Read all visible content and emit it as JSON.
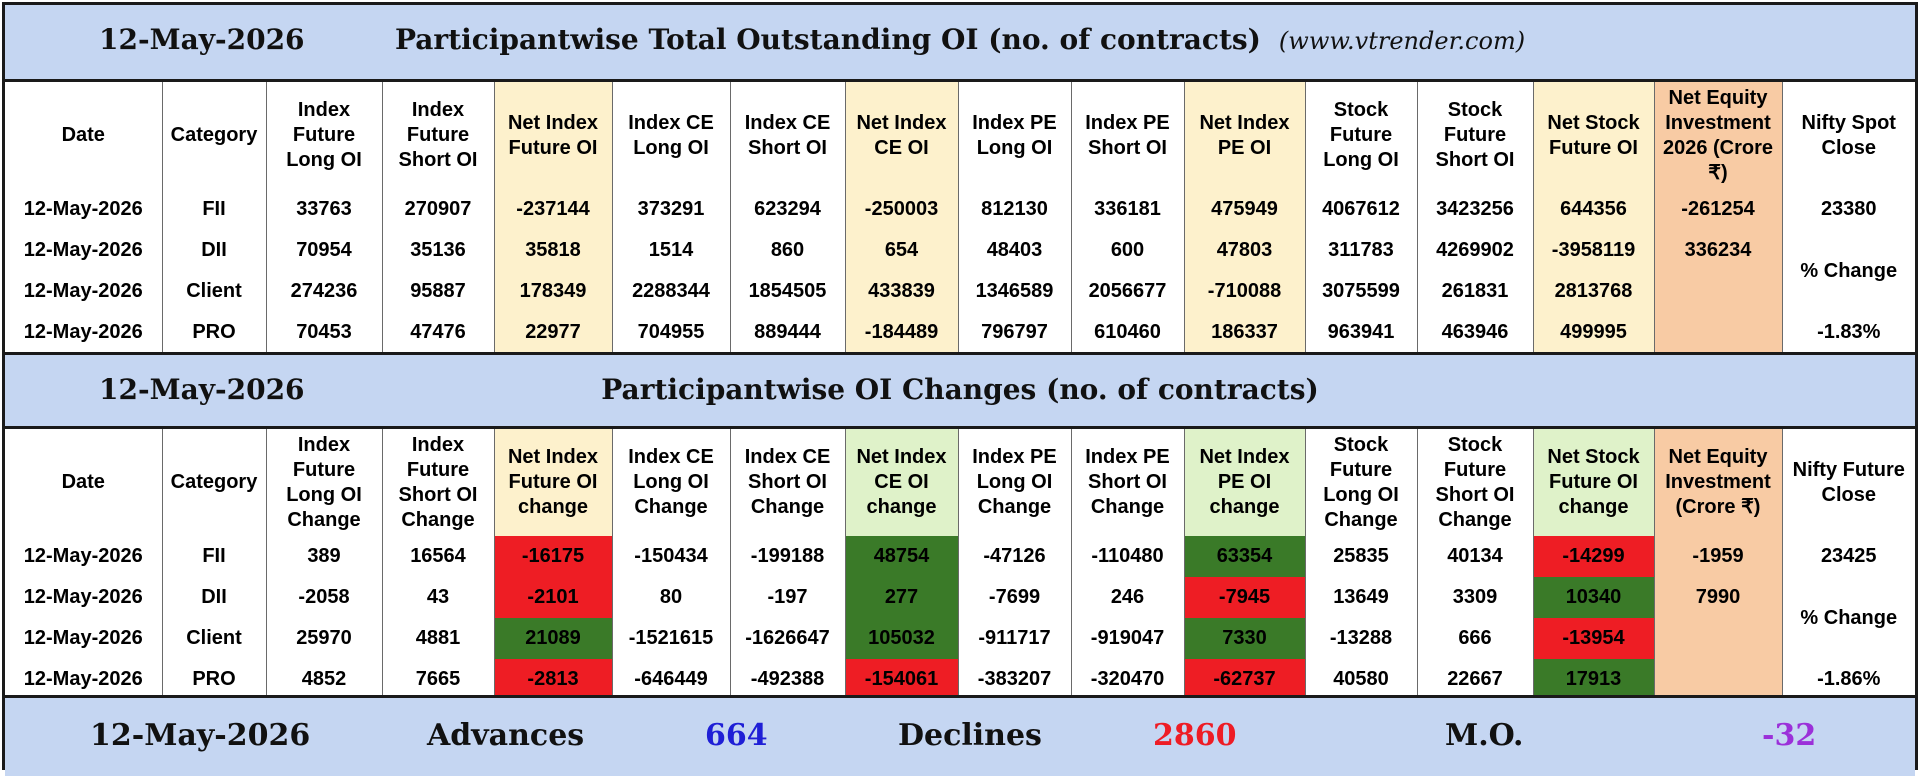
{
  "date": "12-May-2026",
  "outstanding": {
    "title": "Participantwise Total Outstanding OI (no. of contracts)",
    "site": "(www.vtrender.com)",
    "headers": [
      "Date",
      "Category",
      "Index Future Long OI",
      "Index Future Short OI",
      "Net Index Future OI",
      "Index CE Long OI",
      "Index CE Short OI",
      "Net Index CE OI",
      "Index PE Long OI",
      "Index PE Short OI",
      "Net Index PE OI",
      "Stock Future Long OI",
      "Stock Future Short OI",
      "Net Stock Future OI",
      "Net Equity Investment 2026 (Crore ₹)",
      "Nifty Spot Close"
    ],
    "rows": [
      {
        "date": "12-May-2026",
        "category": "FII",
        "values": [
          "33763",
          "270907",
          "-237144",
          "373291",
          "623294",
          "-250003",
          "812130",
          "336181",
          "475949",
          "4067612",
          "3423256",
          "644356",
          "-261254"
        ]
      },
      {
        "date": "12-May-2026",
        "category": "DII",
        "values": [
          "70954",
          "35136",
          "35818",
          "1514",
          "860",
          "654",
          "48403",
          "600",
          "47803",
          "311783",
          "4269902",
          "-3958119",
          "336234"
        ]
      },
      {
        "date": "12-May-2026",
        "category": "Client",
        "values": [
          "274236",
          "95887",
          "178349",
          "2288344",
          "1854505",
          "433839",
          "1346589",
          "2056677",
          "-710088",
          "3075599",
          "261831",
          "2813768",
          ""
        ]
      },
      {
        "date": "12-May-2026",
        "category": "PRO",
        "values": [
          "70453",
          "47476",
          "22977",
          "704955",
          "889444",
          "-184489",
          "796797",
          "610460",
          "186337",
          "963941",
          "463946",
          "499995",
          ""
        ]
      }
    ],
    "last_col": {
      "value": "23380",
      "label": "% Change",
      "pct": "-1.83%"
    }
  },
  "changes": {
    "title": "Participantwise OI Changes (no. of contracts)",
    "headers": [
      "Date",
      "Category",
      "Index Future Long OI Change",
      "Index Future Short OI Change",
      "Net Index Future OI change",
      "Index CE Long OI Change",
      "Index CE Short OI Change",
      "Net Index CE OI change",
      "Index PE Long OI Change",
      "Index PE Short OI Change",
      "Net Index PE OI change",
      "Stock Future Long OI Change",
      "Stock Future Short OI Change",
      "Net Stock Future OI change",
      "Net Equity Investment (Crore ₹)",
      "Nifty Future Close"
    ],
    "rows": [
      {
        "date": "12-May-2026",
        "category": "FII",
        "values": [
          "389",
          "16564",
          "-16175",
          "-150434",
          "-199188",
          "48754",
          "-47126",
          "-110480",
          "63354",
          "25835",
          "40134",
          "-14299",
          "-1959"
        ]
      },
      {
        "date": "12-May-2026",
        "category": "DII",
        "values": [
          "-2058",
          "43",
          "-2101",
          "80",
          "-197",
          "277",
          "-7699",
          "246",
          "-7945",
          "13649",
          "3309",
          "10340",
          "7990"
        ]
      },
      {
        "date": "12-May-2026",
        "category": "Client",
        "values": [
          "25970",
          "4881",
          "21089",
          "-1521615",
          "-1626647",
          "105032",
          "-911717",
          "-919047",
          "7330",
          "-13288",
          "666",
          "-13954",
          ""
        ]
      },
      {
        "date": "12-May-2026",
        "category": "PRO",
        "values": [
          "4852",
          "7665",
          "-2813",
          "-646449",
          "-492388",
          "-154061",
          "-383207",
          "-320470",
          "-62737",
          "40580",
          "22667",
          "17913",
          ""
        ]
      }
    ],
    "last_col": {
      "value": "23425",
      "label": "% Change",
      "pct": "-1.86%"
    }
  },
  "footer": {
    "date": "12-May-2026",
    "advances_label": "Advances",
    "advances": "664",
    "declines_label": "Declines",
    "declines": "2860",
    "mo_label": "M.O.",
    "mo": "-32"
  },
  "colors": {
    "title_bg": "#c5d6f2",
    "cream_col": "#fdf1cc",
    "green_col": "#dff2c9",
    "peach_col": "#f8cba4",
    "negative_text": "#ee1c25",
    "positive_text": "#1f1fd6",
    "cell_red": "#ee1d24",
    "cell_green": "#3a7a28",
    "mo_text": "#9b30d9"
  }
}
